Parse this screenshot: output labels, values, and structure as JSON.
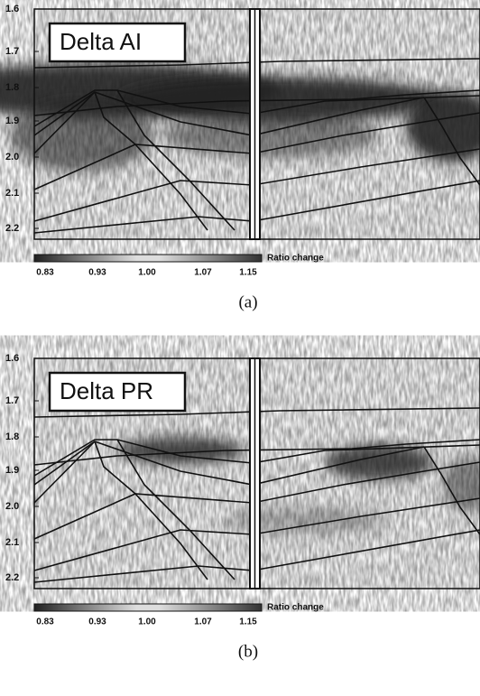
{
  "panels": [
    {
      "label": "Delta AI",
      "yticks": [
        "1.6",
        "1.7",
        "1.8",
        "1.9",
        "2.0",
        "2.1",
        "2.2"
      ],
      "colorbar": {
        "ticks": [
          "0.83",
          "0.93",
          "1.00",
          "1.07",
          "1.15"
        ],
        "title": "Ratio change"
      },
      "caption": "(a)"
    },
    {
      "label": "Delta PR",
      "yticks": [
        "1.6",
        "1.7",
        "1.8",
        "1.9",
        "2.0",
        "2.1",
        "2.2"
      ],
      "colorbar": {
        "ticks": [
          "0.83",
          "0.93",
          "1.00",
          "1.07",
          "1.15"
        ],
        "title": "Ratio change"
      },
      "caption": "(b)"
    }
  ]
}
